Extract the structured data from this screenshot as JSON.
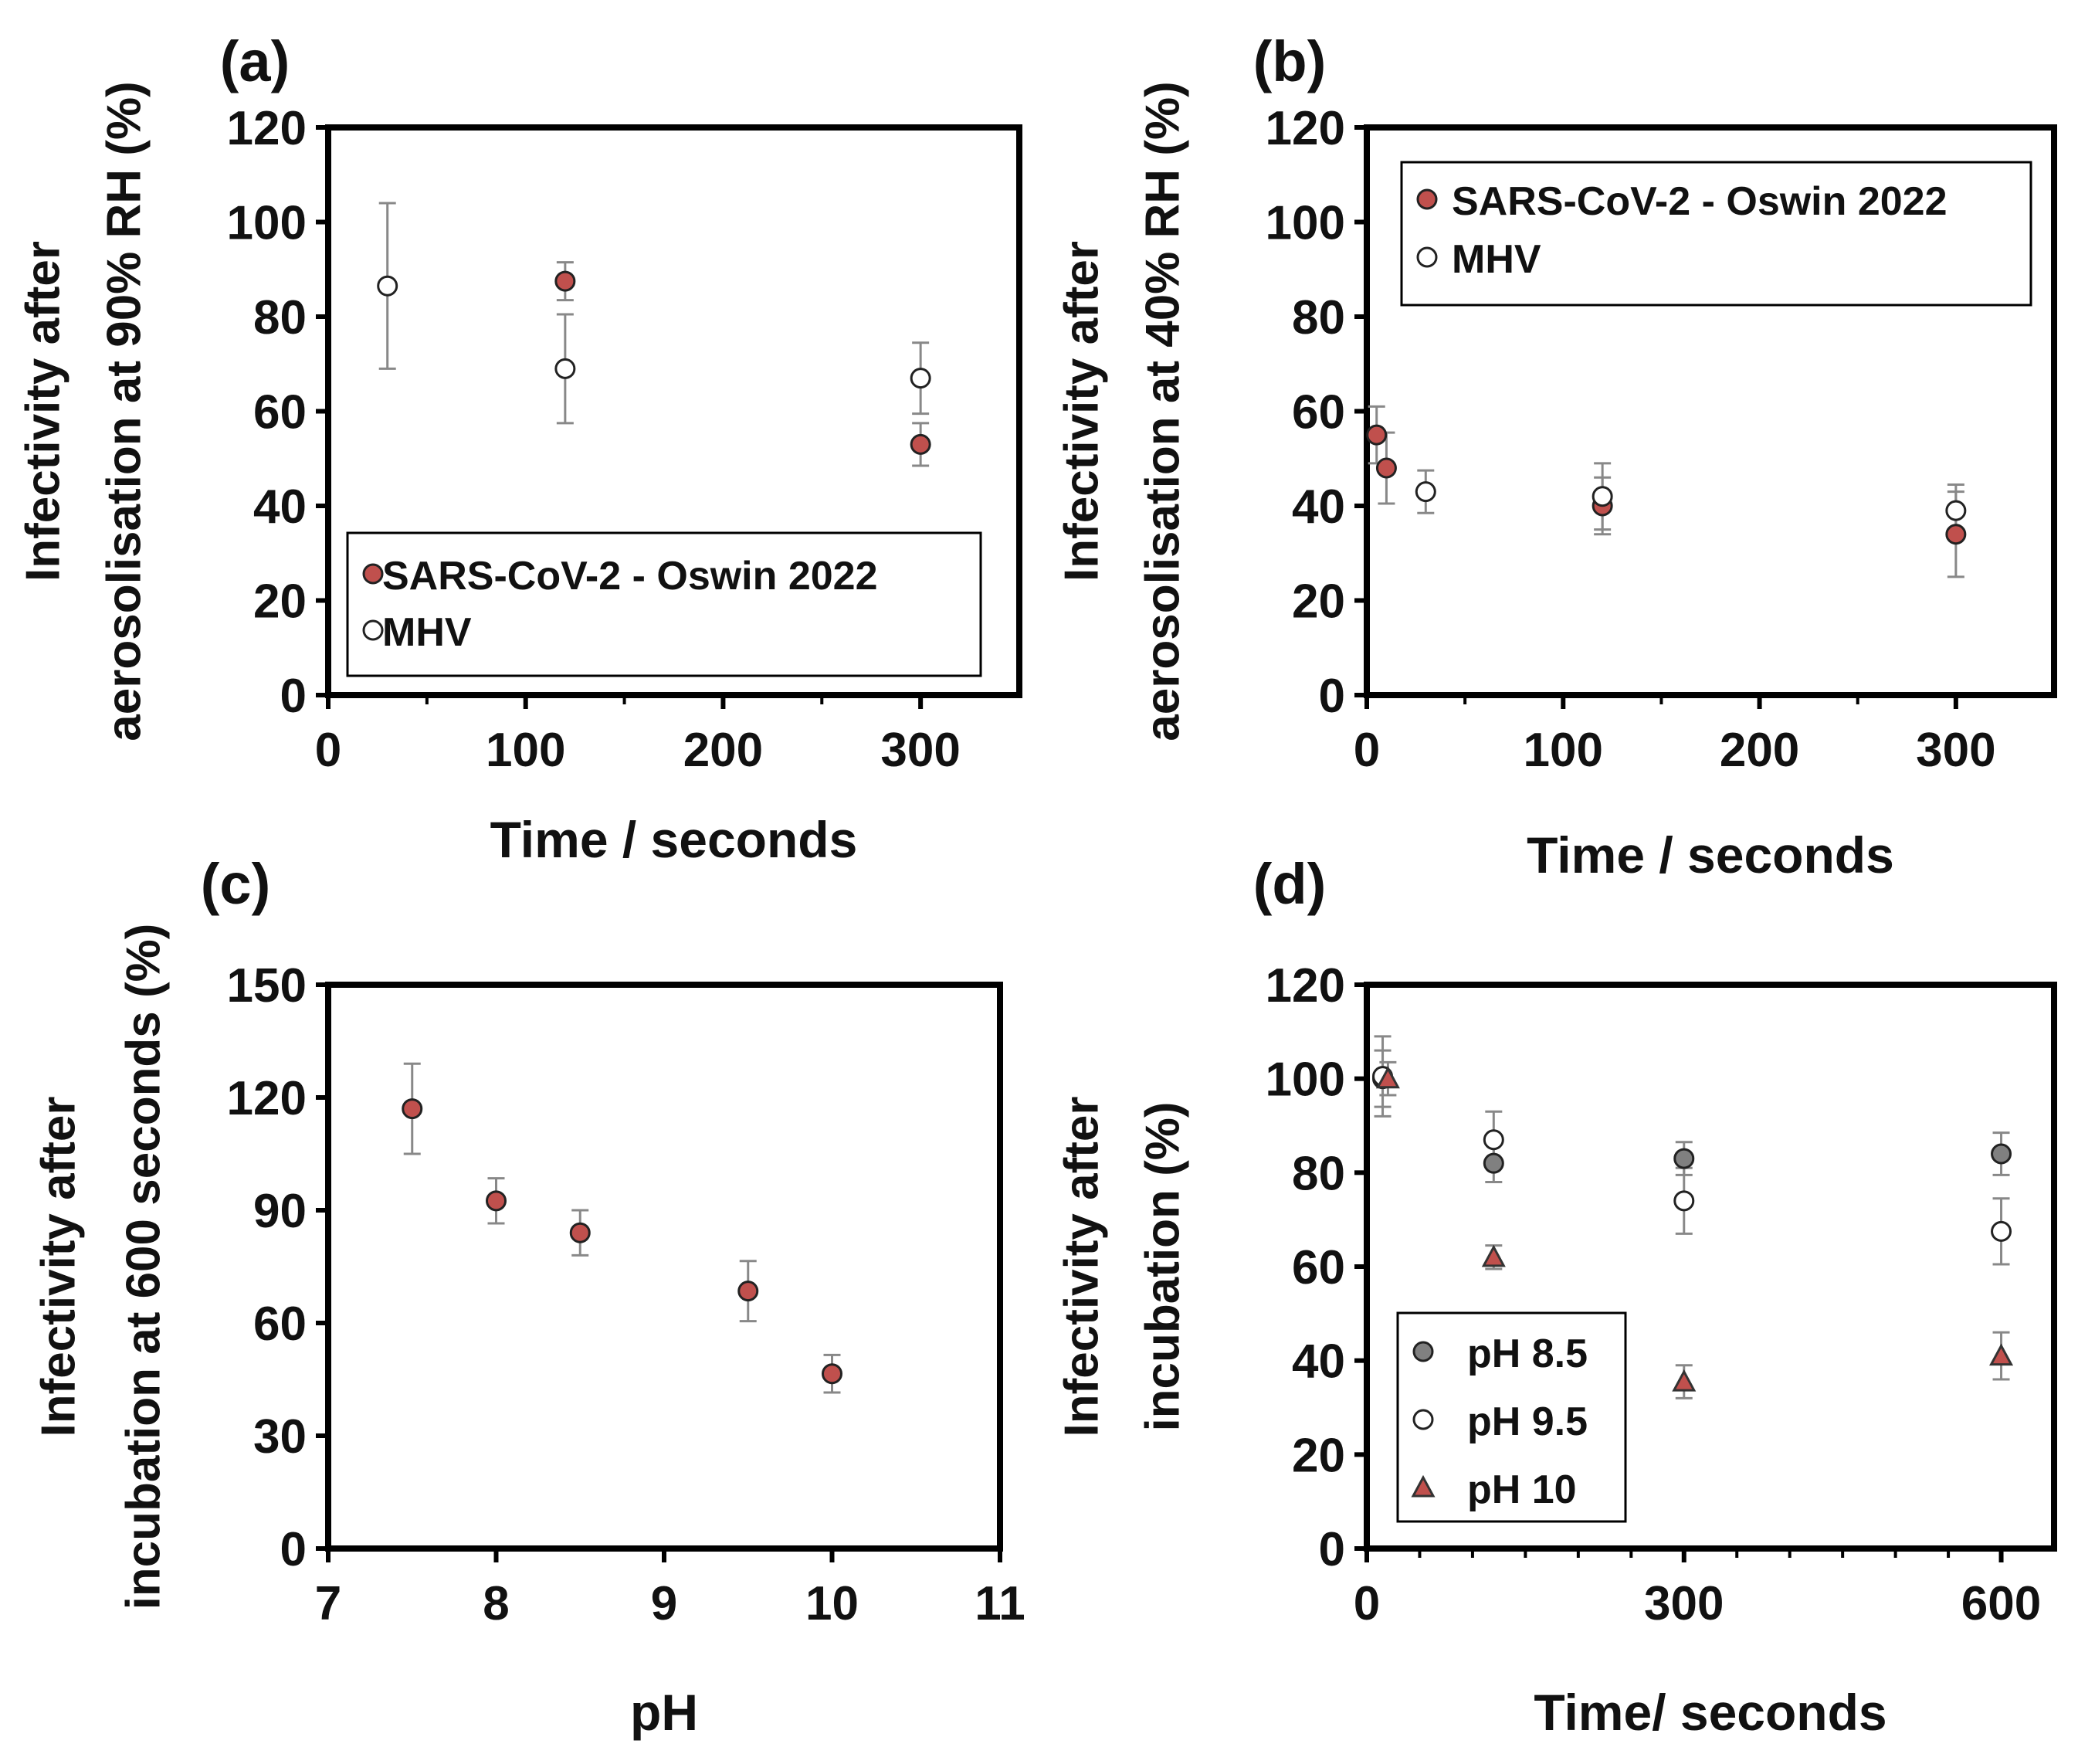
{
  "chart_data": [
    {
      "panel": "(a)",
      "type": "scatter",
      "xlabel": "Time / seconds",
      "ylabel_lines": [
        "Infectivity after",
        "aerosolisation at 90% RH (%)"
      ],
      "xlim": [
        0,
        350
      ],
      "ylim": [
        0,
        120
      ],
      "xticks": [
        0,
        100,
        200,
        300
      ],
      "xminor": [
        50,
        150,
        250
      ],
      "yticks": [
        0,
        20,
        40,
        60,
        80,
        100,
        120
      ],
      "legend_position": "bottom-right",
      "series": [
        {
          "name": "SARS-CoV-2 - Oswin 2022",
          "marker": "circle-filled",
          "color": "#c0504d",
          "points": [
            {
              "x": 120,
              "y": 87.5,
              "err": 4
            },
            {
              "x": 300,
              "y": 53,
              "err": 4.5
            }
          ]
        },
        {
          "name": "MHV",
          "marker": "circle-open",
          "color": "#ffffff",
          "points": [
            {
              "x": 30,
              "y": 86.5,
              "err": 17.5
            },
            {
              "x": 120,
              "y": 69,
              "err": 11.5
            },
            {
              "x": 300,
              "y": 67,
              "err": 7.5
            }
          ]
        }
      ]
    },
    {
      "panel": "(b)",
      "type": "scatter",
      "xlabel": "Time / seconds",
      "ylabel_lines": [
        "Infectivity after",
        "aerosolisation at 40% RH (%)"
      ],
      "xlim": [
        0,
        350
      ],
      "ylim": [
        0,
        120
      ],
      "xticks": [
        0,
        100,
        200,
        300
      ],
      "xminor": [
        50,
        150,
        250
      ],
      "yticks": [
        0,
        20,
        40,
        60,
        80,
        100,
        120
      ],
      "legend_position": "top-right",
      "series": [
        {
          "name": "SARS-CoV-2 - Oswin 2022",
          "marker": "circle-filled",
          "color": "#c0504d",
          "points": [
            {
              "x": 5,
              "y": 55,
              "err": 6
            },
            {
              "x": 10,
              "y": 48,
              "err": 7.5
            },
            {
              "x": 120,
              "y": 40,
              "err": 6
            },
            {
              "x": 300,
              "y": 34,
              "err": 9
            }
          ]
        },
        {
          "name": "MHV",
          "marker": "circle-open",
          "color": "#ffffff",
          "points": [
            {
              "x": 30,
              "y": 43,
              "err": 4.5
            },
            {
              "x": 120,
              "y": 42,
              "err": 7
            },
            {
              "x": 300,
              "y": 39,
              "err": 5.5
            }
          ]
        }
      ]
    },
    {
      "panel": "(c)",
      "type": "scatter",
      "xlabel": "pH",
      "ylabel_lines": [
        "Infectivity after",
        "incubation at 600 seconds (%)"
      ],
      "xlim": [
        7,
        11
      ],
      "ylim": [
        0,
        150
      ],
      "xticks": [
        7,
        8,
        9,
        10,
        11
      ],
      "xminor": [],
      "yticks": [
        0,
        30,
        60,
        90,
        120,
        150
      ],
      "legend_position": "none",
      "series": [
        {
          "name": "",
          "marker": "circle-filled",
          "color": "#c0504d",
          "points": [
            {
              "x": 7.5,
              "y": 117,
              "err": 12
            },
            {
              "x": 8,
              "y": 92.5,
              "err": 6
            },
            {
              "x": 8.5,
              "y": 84,
              "err": 6
            },
            {
              "x": 9.5,
              "y": 68.5,
              "err": 8
            },
            {
              "x": 10,
              "y": 46.5,
              "err": 5
            }
          ]
        }
      ]
    },
    {
      "panel": "(d)",
      "type": "scatter",
      "xlabel": "Time/ seconds",
      "ylabel_lines": [
        "Infectivity after",
        "incubation (%)"
      ],
      "xlim": [
        0,
        650
      ],
      "ylim": [
        0,
        120
      ],
      "xticks": [
        0,
        300,
        600
      ],
      "xminor": [
        50,
        100,
        150,
        200,
        250,
        350,
        400,
        450,
        500,
        550
      ],
      "yticks": [
        0,
        20,
        40,
        60,
        80,
        100,
        120
      ],
      "legend_position": "bottom-left",
      "series": [
        {
          "name": "pH 8.5",
          "marker": "circle-filled",
          "color": "#808080",
          "points": [
            {
              "x": 15,
              "y": 100,
              "err": 6
            },
            {
              "x": 120,
              "y": 82,
              "err": 4
            },
            {
              "x": 300,
              "y": 83,
              "err": 3.5
            },
            {
              "x": 600,
              "y": 84,
              "err": 4.5
            }
          ]
        },
        {
          "name": "pH 9.5",
          "marker": "circle-open",
          "color": "#ffffff",
          "points": [
            {
              "x": 15,
              "y": 100.5,
              "err": 8.5
            },
            {
              "x": 120,
              "y": 87,
              "err": 6
            },
            {
              "x": 300,
              "y": 74,
              "err": 7
            },
            {
              "x": 600,
              "y": 67.5,
              "err": 7
            }
          ]
        },
        {
          "name": "pH 10",
          "marker": "triangle",
          "color": "#c0504d",
          "points": [
            {
              "x": 20,
              "y": 100,
              "err": 3.5
            },
            {
              "x": 120,
              "y": 62,
              "err": 2.5
            },
            {
              "x": 300,
              "y": 35.5,
              "err": 3.5
            },
            {
              "x": 600,
              "y": 41,
              "err": 5
            }
          ]
        }
      ]
    }
  ]
}
